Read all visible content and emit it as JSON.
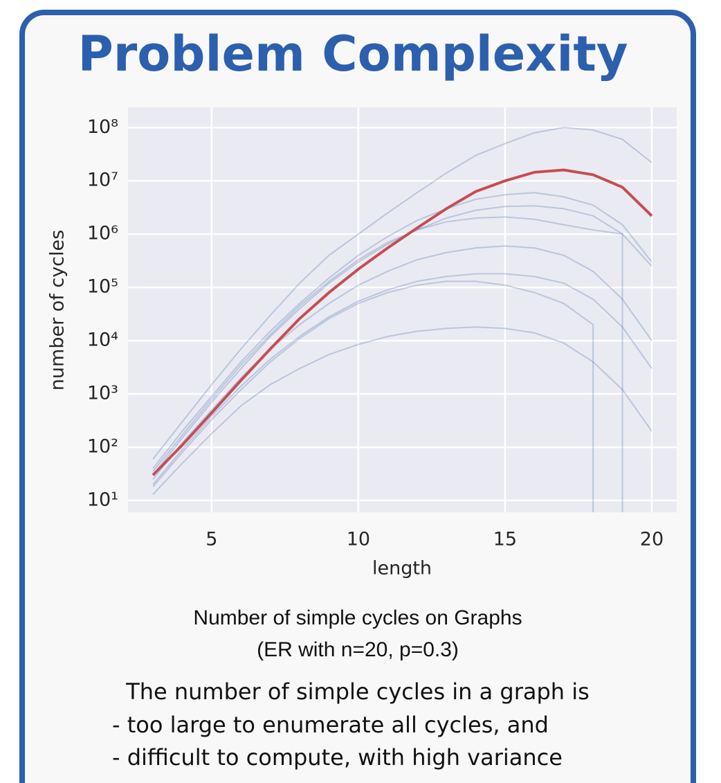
{
  "title": "Problem Complexity",
  "chart_data": {
    "type": "line",
    "x": [
      3,
      4,
      5,
      6,
      7,
      8,
      9,
      10,
      11,
      12,
      13,
      14,
      15,
      16,
      17,
      18,
      19,
      20
    ],
    "xlabel": "length",
    "ylabel": "number of cycles",
    "xlim": [
      2.15,
      20.85
    ],
    "xticks": [
      5,
      10,
      15,
      20
    ],
    "ylim": [
      6,
      240000000
    ],
    "log_y": true,
    "grid": true,
    "yticks": [
      {
        "value": 10,
        "label": "10¹"
      },
      {
        "value": 100,
        "label": "10²"
      },
      {
        "value": 1000,
        "label": "10³"
      },
      {
        "value": 10000,
        "label": "10⁴"
      },
      {
        "value": 100000,
        "label": "10⁵"
      },
      {
        "value": 1000000,
        "label": "10⁶"
      },
      {
        "value": 10000000,
        "label": "10⁷"
      },
      {
        "value": 100000000,
        "label": "10⁸"
      }
    ],
    "series": [
      {
        "color": "#4c72b0",
        "values": [
          60,
          300,
          1500,
          7000,
          30000,
          120000,
          400000,
          1000000,
          2500000,
          6000000,
          14000000,
          30000000,
          50000000,
          80000000,
          100000000,
          90000000,
          60000000,
          22000000
        ]
      },
      {
        "color": "#4c72b0",
        "values": [
          40,
          200,
          900,
          4000,
          15000,
          50000,
          150000,
          400000,
          900000,
          1800000,
          3000000,
          4500000,
          5500000,
          6000000,
          5000000,
          3500000,
          1500000,
          300000
        ]
      },
      {
        "color": "#4c72b0",
        "values": [
          25,
          120,
          500,
          2000,
          7000,
          20000,
          50000,
          110000,
          200000,
          330000,
          450000,
          550000,
          600000,
          550000,
          400000,
          200000,
          60000,
          10000
        ]
      },
      {
        "color": "#4c72b0",
        "values": [
          13,
          50,
          180,
          600,
          1500,
          3000,
          5500,
          8500,
          12000,
          15000,
          17000,
          18000,
          17000,
          14000,
          9000,
          4000,
          1200,
          200
        ]
      },
      {
        "color": "#4c72b0",
        "values": [
          20,
          90,
          380,
          1400,
          4500,
          12000,
          28000,
          55000,
          90000,
          130000,
          160000,
          180000,
          180000,
          160000,
          120000,
          60000,
          18000,
          3000
        ]
      },
      {
        "color": "#4c72b0",
        "values": [
          35,
          170,
          800,
          3500,
          13000,
          45000,
          130000,
          330000,
          700000,
          1200000,
          1700000,
          2000000,
          2100000,
          1900000,
          1500000,
          1200000,
          1000000,
          0
        ]
      },
      {
        "color": "#4c72b0",
        "values": [
          18,
          80,
          330,
          1200,
          4000,
          11000,
          26000,
          50000,
          80000,
          110000,
          130000,
          130000,
          110000,
          80000,
          50000,
          20000,
          0,
          0
        ]
      },
      {
        "color": "#4c72b0",
        "values": [
          30,
          150,
          700,
          3000,
          12000,
          40000,
          120000,
          300000,
          650000,
          1200000,
          2000000,
          2800000,
          3300000,
          3400000,
          3000000,
          2200000,
          1000000,
          250000
        ]
      },
      {
        "color": "#c44e52",
        "values": [
          30,
          110,
          440,
          1800,
          7000,
          26000,
          80000,
          220000,
          550000,
          1300000,
          3000000,
          6300000,
          10000000,
          14500000,
          16000000,
          13000000,
          7600000,
          2200000
        ]
      }
    ]
  },
  "caption": [
    "Number of simple cycles on Graphs",
    "(ER with n=20, p=0.3)"
  ],
  "notes": [
    "The number of simple cycles in a graph is",
    "- too large to enumerate all cycles, and",
    "- difficult to compute, with high variance"
  ]
}
